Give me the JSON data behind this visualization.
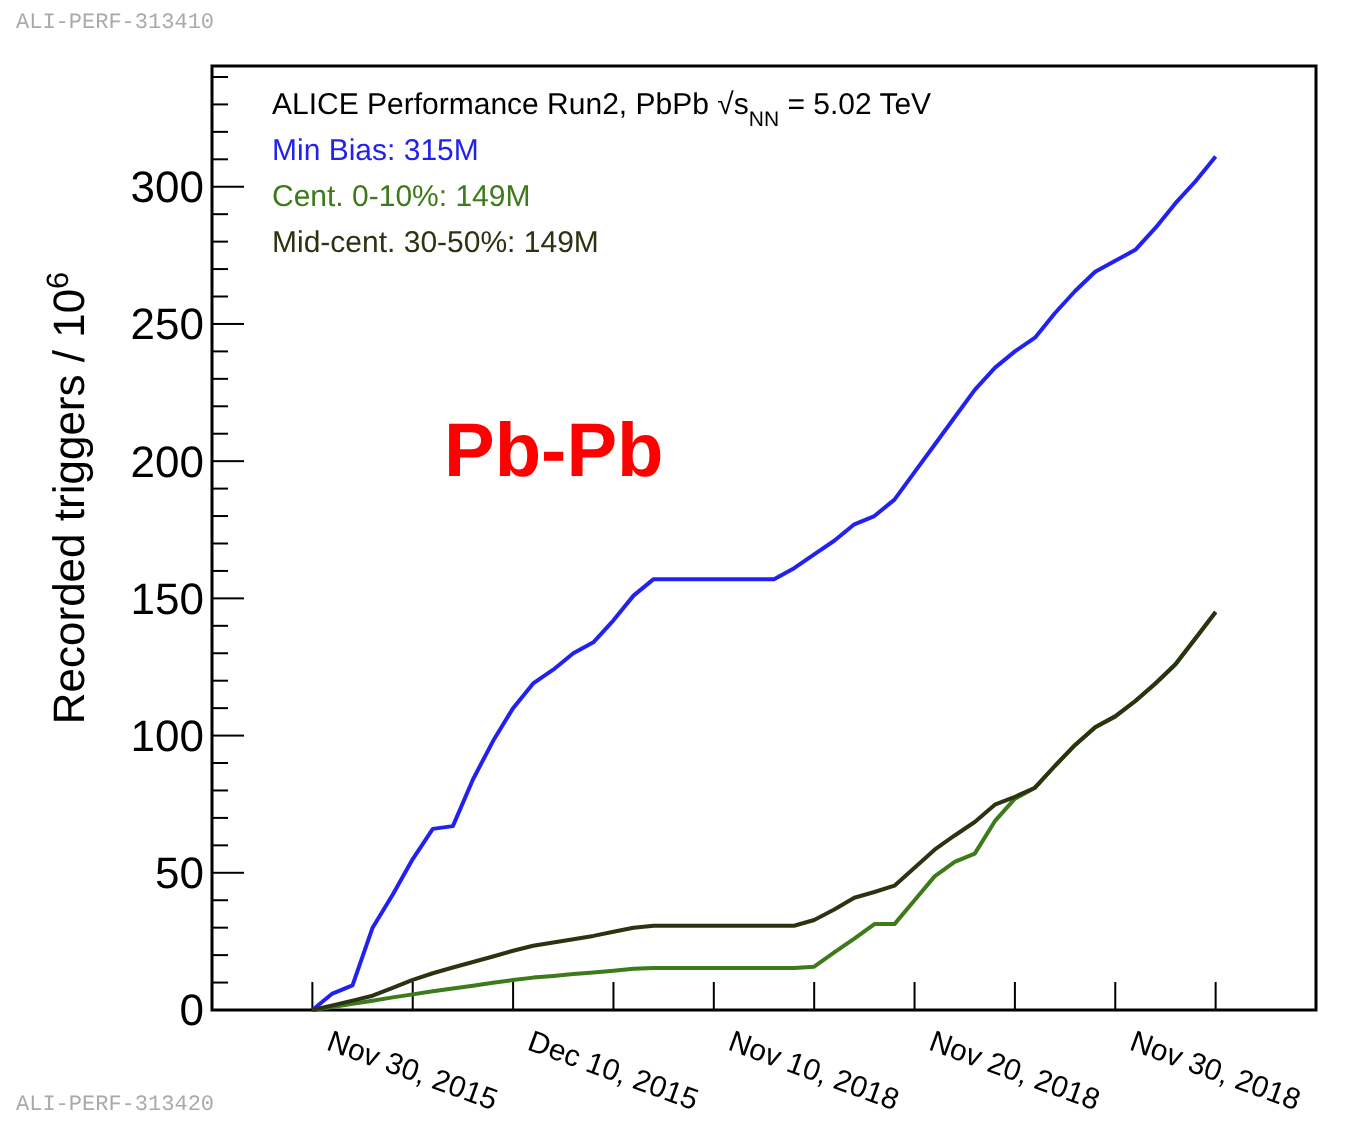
{
  "chart_data": {
    "type": "line",
    "legend_title": "ALICE Performance Run2, PbPb √s$_{NN}$ = 5.02 TeV",
    "ylabel": "Recorded triggers / 10$^{6}$",
    "annotations": [
      "Pb-Pb",
      "ALI-PERF-313410",
      "ALI-PERF-313420"
    ],
    "categories": [
      null,
      null,
      null,
      null,
      null,
      "Nov 30, 2015",
      null,
      null,
      null,
      null,
      null,
      null,
      null,
      null,
      null,
      "Dec 10, 2015",
      null,
      null,
      null,
      null,
      null,
      null,
      null,
      null,
      null,
      "Nov 10, 2018",
      null,
      null,
      null,
      null,
      null,
      null,
      null,
      null,
      null,
      "Nov 20, 2018",
      null,
      null,
      null,
      null,
      null,
      null,
      null,
      null,
      null,
      "Nov 30, 2018"
    ],
    "ylim": [
      0,
      344
    ],
    "yticks": [
      0,
      50,
      100,
      150,
      200,
      250,
      300
    ],
    "legend": "top left",
    "series": [
      {
        "name": "Min Bias: 315M",
        "color": "#2222ee",
        "values": [
          0,
          6,
          9,
          30,
          42,
          55,
          66,
          67,
          84,
          98,
          110,
          119,
          124,
          130,
          134,
          142,
          151,
          157,
          157,
          157,
          157,
          157,
          157,
          157,
          161,
          166,
          171,
          177,
          180,
          186,
          196,
          206,
          216,
          226,
          234,
          240,
          245,
          254,
          262,
          269,
          273,
          277,
          285,
          294,
          302,
          311
        ]
      },
      {
        "name": "Cent. 0-10%: 149M",
        "color": "#3d7a1a",
        "values": [
          0,
          1.1,
          2.3,
          3.4,
          4.6,
          5.7,
          6.8,
          7.8,
          8.8,
          9.9,
          10.9,
          11.8,
          12.4,
          13.1,
          13.7,
          14.3,
          15,
          15.3,
          15.3,
          15.3,
          15.3,
          15.3,
          15.3,
          15.3,
          15.3,
          15.8,
          21,
          26,
          31.3,
          31.3,
          40,
          48.7,
          54,
          57,
          68.8,
          77,
          81,
          89,
          96.6,
          103,
          107,
          112.6,
          119,
          126,
          135.5,
          145
        ]
      },
      {
        "name": "Mid-cent. 30-50%: 149M",
        "color": "#2b3310",
        "values": [
          0,
          1.7,
          3.4,
          5.2,
          8.1,
          11,
          13.4,
          15.5,
          17.5,
          19.5,
          21.6,
          23.4,
          24.6,
          25.8,
          27,
          28.5,
          30,
          30.7,
          30.7,
          30.7,
          30.7,
          30.7,
          30.7,
          30.7,
          30.7,
          32.8,
          36.6,
          40.9,
          43,
          45.3,
          51.8,
          58.4,
          63.6,
          68.5,
          74.8,
          77.7,
          81,
          89,
          96.6,
          103,
          107,
          112.6,
          119,
          126,
          135.5,
          145
        ]
      }
    ]
  }
}
